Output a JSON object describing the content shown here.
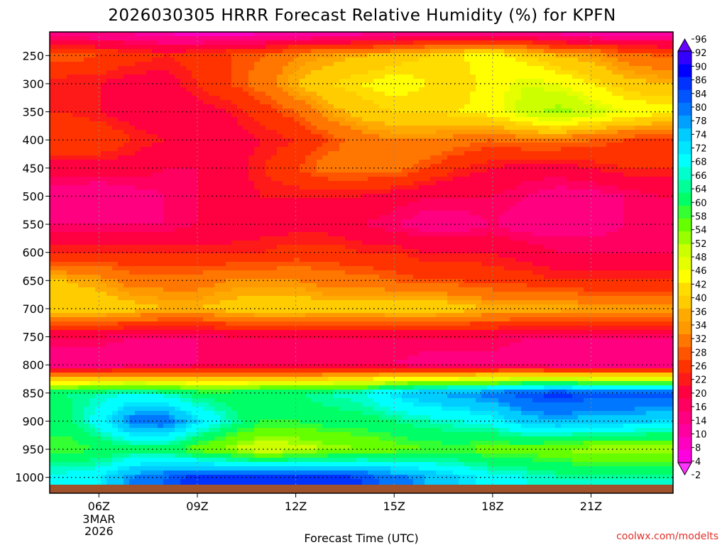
{
  "chart_data": {
    "type": "heatmap",
    "title": "2026030305 HRRR Forecast Relative Humidity (%) for KPFN",
    "xlabel": "Forecast Time (UTC)",
    "ylabel": "",
    "credit": "coolwx.com/modelts",
    "x_ticks": [
      "06Z",
      "09Z",
      "12Z",
      "15Z",
      "18Z",
      "21Z"
    ],
    "x_date_lines": [
      "3MAR",
      "2026"
    ],
    "x_hours": [
      5,
      6,
      7,
      8,
      9,
      10,
      11,
      12,
      13,
      14,
      15,
      16,
      17,
      18,
      19,
      20,
      21,
      22,
      23
    ],
    "y_ticks": [
      250,
      300,
      350,
      400,
      450,
      500,
      550,
      600,
      650,
      700,
      750,
      800,
      850,
      900,
      950,
      1000
    ],
    "y_levels": [
      200,
      250,
      300,
      350,
      400,
      450,
      500,
      550,
      600,
      650,
      700,
      750,
      800,
      850,
      900,
      950,
      1000
    ],
    "ylim": [
      200,
      1013
    ],
    "grid": true,
    "colorbar": {
      "levels": [
        2,
        4,
        8,
        10,
        14,
        16,
        20,
        22,
        26,
        28,
        32,
        34,
        36,
        40,
        42,
        46,
        48,
        52,
        54,
        58,
        60,
        64,
        66,
        68,
        72,
        74,
        78,
        80,
        84,
        86,
        90,
        92,
        96
      ],
      "colors": [
        "#ff33ff",
        "#ff00e0",
        "#ff00c0",
        "#ff00a0",
        "#ff0080",
        "#ff0060",
        "#ff0040",
        "#ff1a1a",
        "#ff3300",
        "#ff5500",
        "#ff7700",
        "#ff9900",
        "#ffaa00",
        "#ffcc00",
        "#ffdd00",
        "#ffff00",
        "#e6ff00",
        "#ccff00",
        "#99ff00",
        "#66ff00",
        "#33ff33",
        "#00ff66",
        "#00ff99",
        "#00ffcc",
        "#00ffff",
        "#00e6ff",
        "#00ccff",
        "#00a0ff",
        "#0077ff",
        "#0055ff",
        "#0033ff",
        "#0000ff",
        "#3300ff",
        "#6600ff"
      ]
    },
    "rh": [
      [
        6,
        6,
        6,
        4,
        2,
        2,
        2,
        2,
        2,
        2,
        2,
        2,
        2,
        2,
        2,
        2,
        2,
        2,
        2
      ],
      [
        28,
        26,
        24,
        22,
        24,
        26,
        28,
        32,
        34,
        36,
        38,
        40,
        42,
        44,
        40,
        36,
        34,
        30,
        28
      ],
      [
        20,
        20,
        18,
        18,
        22,
        26,
        30,
        36,
        40,
        42,
        44,
        42,
        40,
        44,
        48,
        46,
        42,
        38,
        36
      ],
      [
        22,
        20,
        18,
        16,
        18,
        20,
        24,
        28,
        34,
        38,
        40,
        40,
        42,
        44,
        50,
        54,
        50,
        46,
        44
      ],
      [
        26,
        26,
        22,
        20,
        18,
        18,
        20,
        22,
        26,
        30,
        32,
        32,
        30,
        28,
        30,
        30,
        28,
        26,
        24
      ],
      [
        18,
        18,
        18,
        16,
        16,
        18,
        22,
        26,
        30,
        30,
        30,
        26,
        22,
        20,
        18,
        18,
        20,
        22,
        22
      ],
      [
        12,
        10,
        12,
        14,
        16,
        18,
        20,
        20,
        20,
        20,
        18,
        16,
        16,
        16,
        14,
        12,
        12,
        14,
        16
      ],
      [
        14,
        14,
        14,
        14,
        16,
        16,
        18,
        18,
        18,
        16,
        14,
        12,
        12,
        14,
        12,
        12,
        12,
        14,
        14
      ],
      [
        22,
        22,
        22,
        22,
        22,
        22,
        22,
        24,
        24,
        22,
        22,
        20,
        20,
        20,
        18,
        16,
        16,
        16,
        16
      ],
      [
        36,
        34,
        30,
        30,
        30,
        32,
        32,
        32,
        30,
        30,
        28,
        26,
        26,
        24,
        24,
        22,
        22,
        22,
        22
      ],
      [
        40,
        40,
        38,
        36,
        36,
        38,
        40,
        40,
        38,
        38,
        40,
        40,
        38,
        36,
        36,
        36,
        34,
        34,
        34
      ],
      [
        16,
        16,
        14,
        14,
        14,
        16,
        16,
        16,
        16,
        16,
        16,
        16,
        16,
        16,
        14,
        14,
        14,
        14,
        14
      ],
      [
        10,
        10,
        12,
        12,
        14,
        14,
        14,
        14,
        14,
        14,
        14,
        12,
        12,
        12,
        12,
        10,
        10,
        10,
        10
      ],
      [
        64,
        66,
        68,
        66,
        62,
        62,
        64,
        64,
        66,
        68,
        74,
        78,
        80,
        82,
        86,
        88,
        86,
        86,
        86
      ],
      [
        62,
        70,
        82,
        84,
        74,
        66,
        60,
        60,
        62,
        62,
        64,
        66,
        68,
        70,
        76,
        78,
        76,
        76,
        74
      ],
      [
        58,
        60,
        62,
        62,
        56,
        52,
        48,
        50,
        52,
        54,
        56,
        58,
        58,
        56,
        56,
        54,
        52,
        52,
        52
      ],
      [
        70,
        72,
        80,
        84,
        88,
        88,
        88,
        88,
        88,
        86,
        82,
        78,
        74,
        70,
        68,
        66,
        66,
        66,
        66
      ]
    ]
  }
}
